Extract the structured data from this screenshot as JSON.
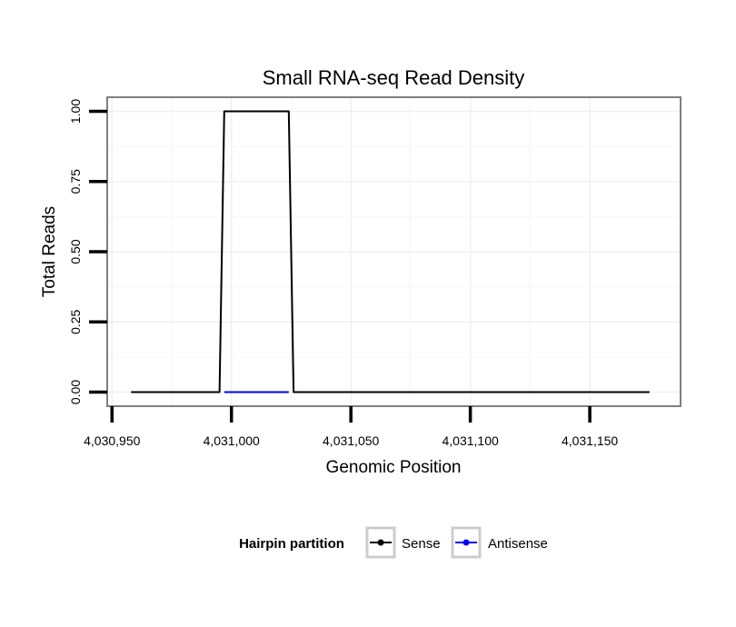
{
  "chart_data": {
    "type": "line",
    "title": "Small RNA-seq Read Density",
    "xlabel": "Genomic Position",
    "ylabel": "Total Reads",
    "xlim": [
      4030948,
      4031188
    ],
    "ylim": [
      -0.05,
      1.05
    ],
    "x_ticks": [
      4030950,
      4031000,
      4031050,
      4031100,
      4031150
    ],
    "x_tick_labels": [
      "4,030,950",
      "4,031,000",
      "4,031,050",
      "4,031,100",
      "4,031,150"
    ],
    "y_ticks": [
      0,
      0.25,
      0.5,
      0.75,
      1.0
    ],
    "y_tick_labels": [
      "0.00",
      "0.25",
      "0.50",
      "0.75",
      "1.00"
    ],
    "grid": true,
    "legend": {
      "title": "Hairpin partition",
      "position": "bottom"
    },
    "series": [
      {
        "name": "Sense",
        "color": "#000000",
        "x": [
          4030958,
          4030995,
          4030997,
          4031024,
          4031026,
          4031175
        ],
        "y": [
          0,
          0,
          1,
          1,
          0,
          0
        ]
      },
      {
        "name": "Antisense",
        "color": "#0000ff",
        "x": [
          4030997,
          4031024
        ],
        "y": [
          0,
          0
        ]
      }
    ]
  }
}
